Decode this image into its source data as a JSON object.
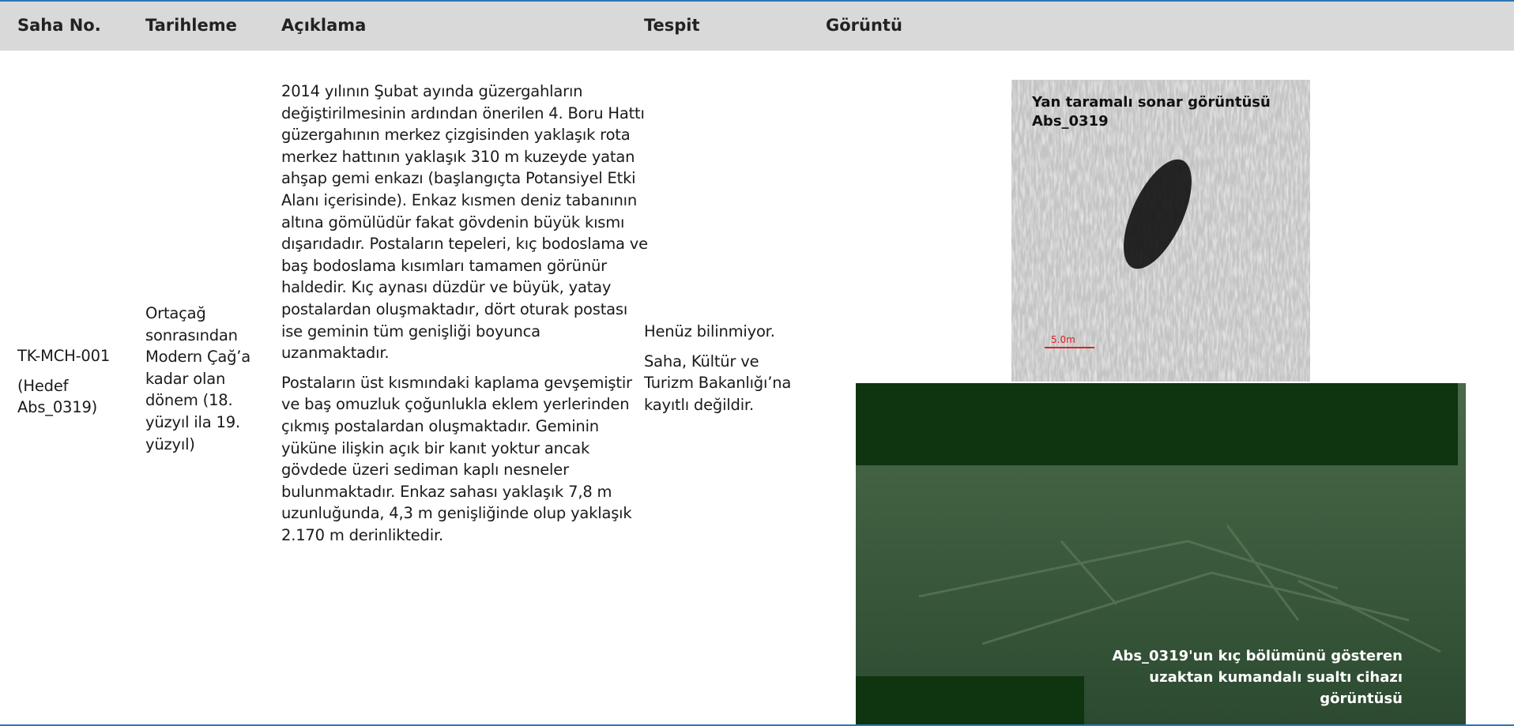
{
  "header": {
    "columns": [
      "Saha No.",
      "Tarihleme",
      "Açıklama",
      "Tespit",
      "Görüntü"
    ]
  },
  "row": {
    "saha_no": [
      "TK-MCH-001",
      "(Hedef Abs_0319)"
    ],
    "tarihleme": "Ortaçağ sonrasından Modern Çağ’a kadar olan dönem (18. yüzyıl ila 19. yüzyıl)",
    "aciklama": [
      "2014 yılının Şubat ayında güzergahların değiştirilmesinin ardından önerilen 4. Boru Hattı güzergahının merkez çizgisinden yaklaşık rota merkez hattının yaklaşık 310 m kuzeyde yatan ahşap gemi enkazı (başlangıçta Potansiyel Etki Alanı içerisinde). Enkaz kısmen deniz tabanının altına gömülüdür fakat gövdenin büyük kısmı dışarıdadır. Postaların tepeleri, kıç bodoslama ve baş bodoslama kısımları tamamen görünür haldedir. Kıç aynası düzdür ve büyük, yatay postalardan oluşmaktadır, dört oturak postası ise geminin tüm genişliği boyunca uzanmaktadır.",
      "Postaların üst kısmındaki kaplama gevşemiştir ve baş omuzluk çoğunlukla eklem yerlerinden çıkmış postalardan oluşmaktadır. Geminin yüküne ilişkin açık bir kanıt yoktur ancak gövdede üzeri sediman kaplı nesneler bulunmaktadır. Enkaz sahası yaklaşık 7,8 m uzunluğunda, 4,3 m genişliğinde olup yaklaşık 2.170 m derinliktedir."
    ],
    "tespit": [
      "Henüz bilinmiyor.",
      "Saha, Kültür ve Turizm Bakanlığı’na kayıtlı değildir."
    ],
    "sonar": {
      "caption": [
        "Yan taramalı sonar görüntüsü",
        "Abs_0319"
      ],
      "scale": "5.0m"
    },
    "rov": {
      "caption": [
        "Abs_0319'un kıç bölümünü gösteren",
        "uzaktan kumandalı sualtı cihazı",
        "görüntüsü"
      ]
    }
  }
}
